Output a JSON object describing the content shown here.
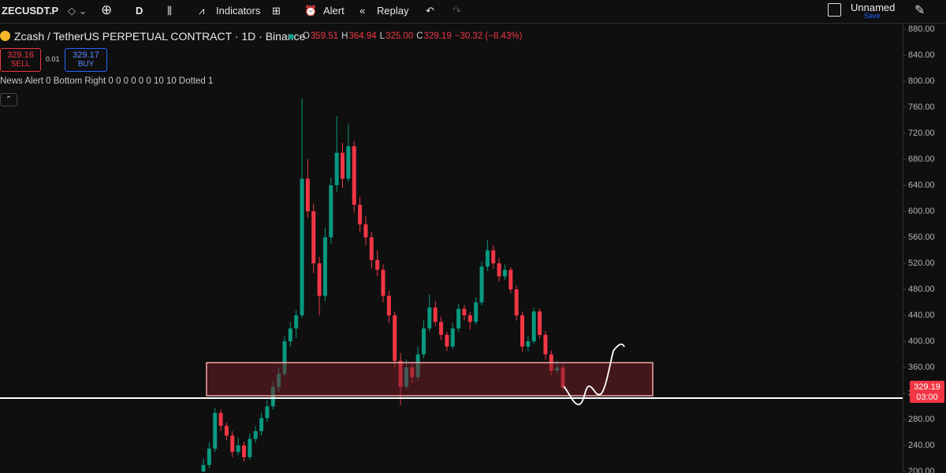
{
  "toolbar": {
    "symbol": "ZECUSDT.P",
    "interval": "D",
    "indicators": "Indicators",
    "alert": "Alert",
    "replay": "Replay",
    "layout_name": "Unnamed",
    "save": "Save"
  },
  "legend": {
    "title": "Zcash / TetherUS PERPETUAL CONTRACT · 1D · Binance",
    "ohlc": [
      {
        "label": "O",
        "value": "359.51"
      },
      {
        "label": "H",
        "value": "364.94"
      },
      {
        "label": "L",
        "value": "325.00"
      },
      {
        "label": "C",
        "value": "329.19"
      }
    ],
    "change": "−30.32 (−8.43%)"
  },
  "trade": {
    "sell_price": "329.16",
    "sell": "SELL",
    "spread": "0.01",
    "buy_price": "329.17",
    "buy": "BUY"
  },
  "indicator_line": "News Alert 0 Bottom Right 0 0 0 0 0 0 10 10 Dotted 1",
  "price_tag": {
    "price": "329.19",
    "countdown": "03:00"
  },
  "chart_data": {
    "type": "candlestick",
    "up_color": "#089981",
    "down_color": "#f23645",
    "ylim": [
      197.6,
      888.5
    ],
    "yticks": [
      {
        "value": 200,
        "label": "200.00"
      },
      {
        "value": 240,
        "label": "240.00"
      },
      {
        "value": 280,
        "label": "280.00"
      },
      {
        "value": 320,
        "label": "320.00"
      },
      {
        "value": 360,
        "label": "360.00"
      },
      {
        "value": 400,
        "label": "400.00"
      },
      {
        "value": 440,
        "label": "440.00"
      },
      {
        "value": 480,
        "label": "480.00"
      },
      {
        "value": 520,
        "label": "520.00"
      },
      {
        "value": 560,
        "label": "560.00"
      },
      {
        "value": 600,
        "label": "600.00"
      },
      {
        "value": 640,
        "label": "640.00"
      },
      {
        "value": 680,
        "label": "680.00"
      },
      {
        "value": 720,
        "label": "720.00"
      },
      {
        "value": 760,
        "label": "760.00"
      },
      {
        "value": 800,
        "label": "800.00"
      },
      {
        "value": 840,
        "label": "840.00"
      },
      {
        "value": 880,
        "label": "880.00"
      }
    ],
    "open": [
      200,
      210,
      235,
      290,
      270,
      255,
      230,
      240,
      222,
      250,
      262,
      282,
      300,
      330,
      350,
      400,
      420,
      440,
      650,
      600,
      520,
      470,
      560,
      640,
      690,
      650,
      700,
      610,
      580,
      560,
      525,
      510,
      470,
      440,
      370,
      330,
      360,
      345,
      380,
      420,
      452,
      430,
      410,
      392,
      420,
      450,
      440,
      430,
      460,
      515,
      540,
      520,
      500,
      510,
      480,
      440,
      392,
      400,
      446,
      410,
      380,
      355,
      359.51
    ],
    "high": [
      220,
      245,
      298,
      295,
      275,
      262,
      252,
      246,
      258,
      270,
      290,
      310,
      338,
      360,
      408,
      430,
      448,
      773,
      680,
      612,
      530,
      575,
      652,
      746,
      705,
      735,
      708,
      622,
      592,
      568,
      540,
      518,
      478,
      446,
      382,
      372,
      368,
      392,
      432,
      472,
      462,
      438,
      415,
      428,
      458,
      456,
      445,
      468,
      522,
      556,
      548,
      528,
      518,
      514,
      486,
      446,
      408,
      452,
      450,
      416,
      386,
      370,
      364.94
    ],
    "low": [
      199,
      205,
      230,
      262,
      248,
      222,
      225,
      215,
      218,
      244,
      255,
      276,
      295,
      322,
      345,
      392,
      405,
      436,
      590,
      505,
      440,
      462,
      550,
      630,
      636,
      645,
      598,
      568,
      548,
      512,
      500,
      460,
      428,
      360,
      302,
      326,
      336,
      340,
      374,
      415,
      424,
      402,
      385,
      388,
      415,
      432,
      418,
      426,
      455,
      508,
      512,
      492,
      494,
      474,
      432,
      384,
      385,
      396,
      404,
      372,
      348,
      350,
      325
    ],
    "close": [
      210,
      235,
      290,
      270,
      255,
      230,
      240,
      222,
      250,
      262,
      282,
      300,
      330,
      350,
      400,
      420,
      440,
      650,
      600,
      520,
      470,
      560,
      640,
      690,
      650,
      700,
      610,
      580,
      560,
      525,
      510,
      470,
      440,
      370,
      330,
      360,
      345,
      380,
      420,
      452,
      430,
      410,
      392,
      420,
      450,
      440,
      430,
      460,
      515,
      540,
      520,
      500,
      510,
      480,
      440,
      392,
      400,
      446,
      410,
      380,
      355,
      359.51,
      329.19
    ]
  }
}
